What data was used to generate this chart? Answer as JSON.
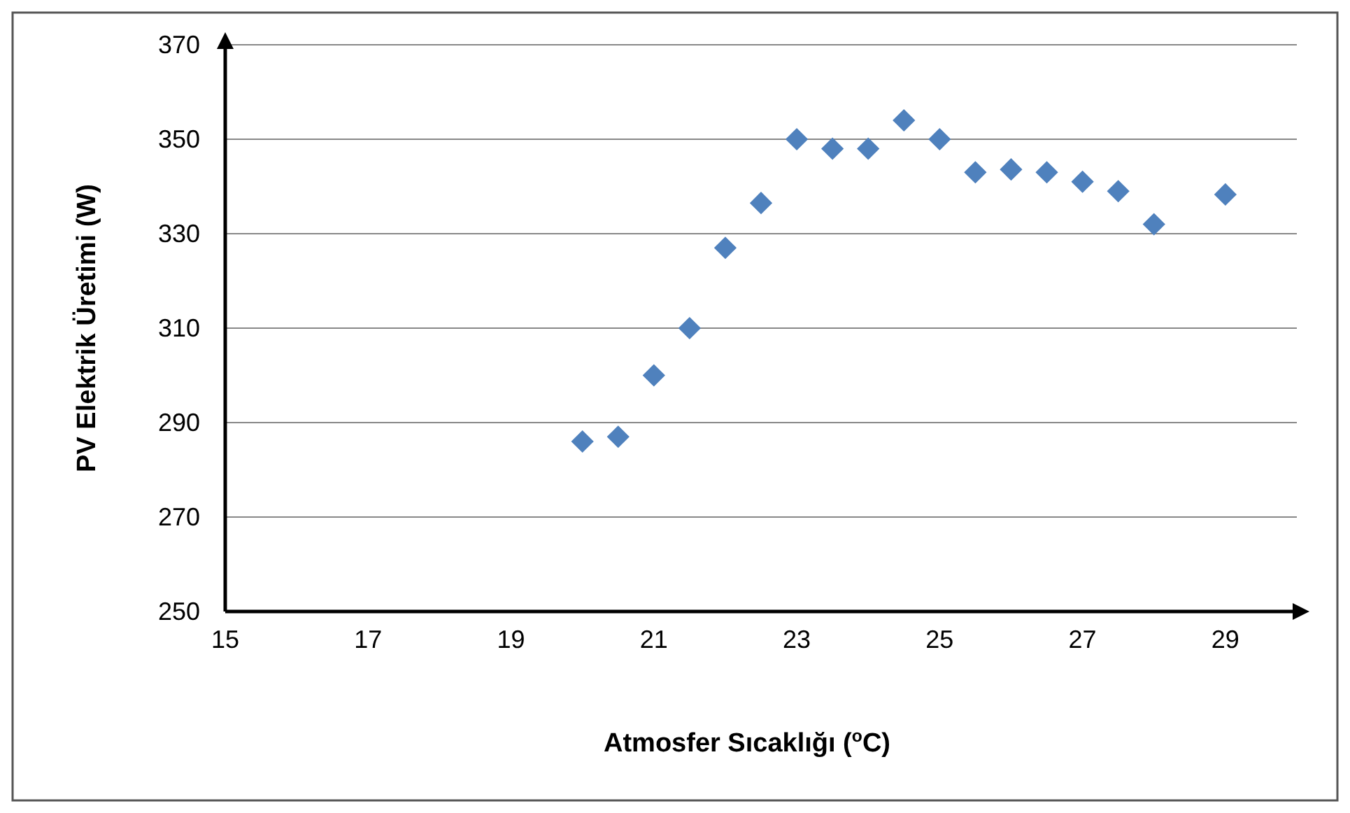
{
  "chart_data": {
    "type": "scatter",
    "xlabel": "Atmosfer Sıcaklığı ($^{o}$C)",
    "ylabel": "PV Elektrik Üretimi (W)",
    "xlim": [
      15,
      30
    ],
    "xticks": [
      15,
      17,
      19,
      21,
      23,
      25,
      27,
      29
    ],
    "ylim": [
      250,
      370
    ],
    "yticks": [
      250,
      270,
      290,
      310,
      330,
      350,
      370
    ],
    "grid": "y",
    "marker": "diamond",
    "series": [
      {
        "color": "#4f81bd",
        "x": [
          20,
          20.5,
          21,
          21.5,
          22,
          22.5,
          23,
          23.5,
          24,
          24.5,
          25,
          25.5,
          26,
          26.5,
          27,
          27.5,
          28,
          29
        ],
        "values": [
          286,
          287,
          300,
          310,
          327,
          336.5,
          350,
          348,
          348,
          354,
          350,
          343,
          343.6,
          343,
          341,
          339,
          332,
          338.3
        ]
      }
    ]
  }
}
